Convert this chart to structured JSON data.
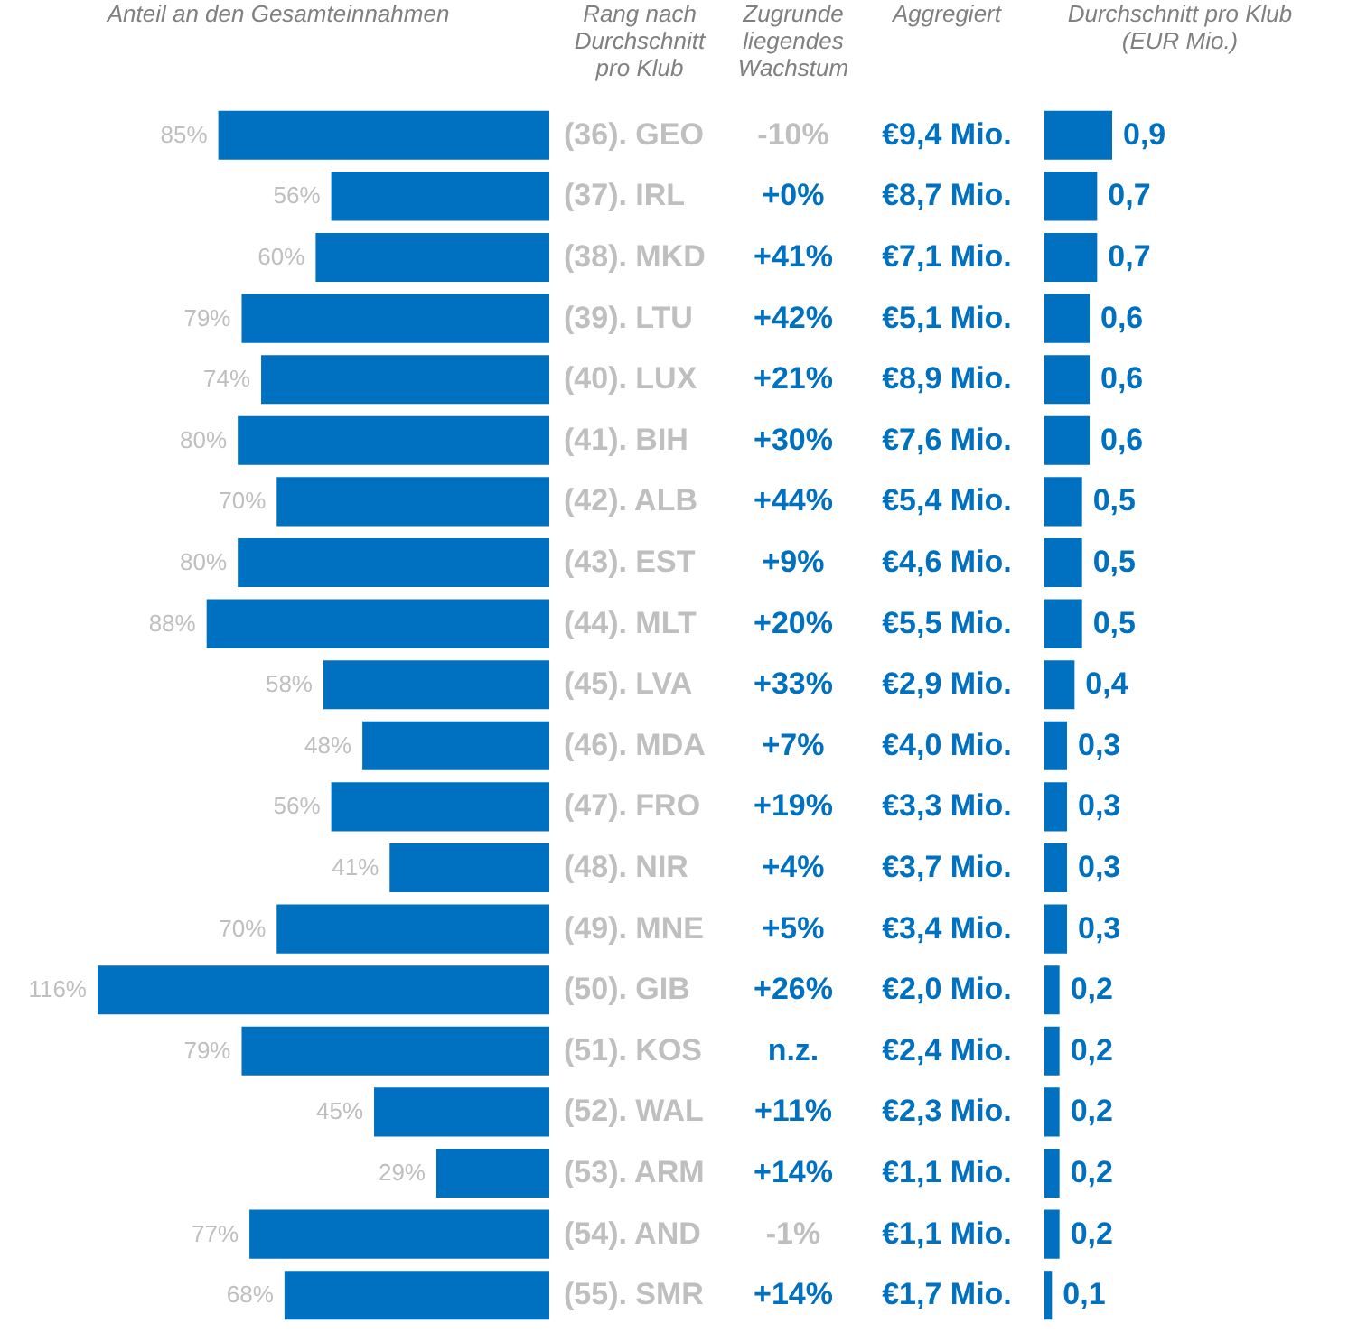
{
  "chart_data": [
    {
      "type": "bar",
      "orientation": "horizontal",
      "title": "Anteil an den Gesamteinnahmen",
      "ylabel": "Rang nach\nDurchschnitt\npro Klub",
      "color": "#0070c0",
      "categories": [
        "(36). GEO",
        "(37). IRL",
        "(38). MKD",
        "(39). LTU",
        "(40). LUX",
        "(41). BIH",
        "(42). ALB",
        "(43). EST",
        "(44). MLT",
        "(45). LVA",
        "(46). MDA",
        "(47). FRO",
        "(48). NIR",
        "(49). MNE",
        "(50). GIB",
        "(51). KOS",
        "(52). WAL",
        "(53). ARM",
        "(54). AND",
        "(55). SMR"
      ],
      "values": [
        85,
        56,
        60,
        79,
        74,
        80,
        70,
        80,
        88,
        58,
        48,
        56,
        41,
        70,
        116,
        79,
        45,
        29,
        77,
        68
      ],
      "value_labels": [
        "85%",
        "56%",
        "60%",
        "79%",
        "74%",
        "80%",
        "70%",
        "80%",
        "88%",
        "58%",
        "48%",
        "56%",
        "41%",
        "70%",
        "116%",
        "79%",
        "45%",
        "29%",
        "77%",
        "68%"
      ]
    },
    {
      "type": "other",
      "title": "Zugrunde\nliegendes\nWachstum",
      "annotations": [
        "-10%",
        "+0%",
        "+41%",
        "+42%",
        "+21%",
        "+30%",
        "+44%",
        "+9%",
        "+20%",
        "+33%",
        "+7%",
        "+19%",
        "+4%",
        "+5%",
        "+26%",
        "n.z.",
        "+11%",
        "+14%",
        "-1%",
        "+14%"
      ],
      "colors": [
        "#bfbfbf",
        "#0070c0",
        "#0070c0",
        "#0070c0",
        "#0070c0",
        "#0070c0",
        "#0070c0",
        "#0070c0",
        "#0070c0",
        "#0070c0",
        "#0070c0",
        "#0070c0",
        "#0070c0",
        "#0070c0",
        "#0070c0",
        "#0070c0",
        "#0070c0",
        "#0070c0",
        "#bfbfbf",
        "#0070c0"
      ]
    },
    {
      "type": "other",
      "title": "Aggregiert",
      "color": "#0070c0",
      "annotations": [
        "€9,4 Mio.",
        "€8,7 Mio.",
        "€7,1 Mio.",
        "€5,1 Mio.",
        "€8,9 Mio.",
        "€7,6 Mio.",
        "€5,4 Mio.",
        "€4,6 Mio.",
        "€5,5 Mio.",
        "€2,9 Mio.",
        "€4,0 Mio.",
        "€3,3 Mio.",
        "€3,7 Mio.",
        "€3,4 Mio.",
        "€2,0 Mio.",
        "€2,4 Mio.",
        "€2,3 Mio.",
        "€1,1 Mio.",
        "€1,1 Mio.",
        "€1,7 Mio."
      ]
    },
    {
      "type": "bar",
      "orientation": "horizontal",
      "title": "Durchschnitt pro Klub\n(EUR Mio.)",
      "color": "#0070c0",
      "categories": [
        null,
        null,
        null,
        null,
        null,
        null,
        null,
        null,
        null,
        null,
        null,
        null,
        null,
        null,
        null,
        null,
        null,
        null,
        null,
        null
      ],
      "values": [
        0.9,
        0.7,
        0.7,
        0.6,
        0.6,
        0.6,
        0.5,
        0.5,
        0.5,
        0.4,
        0.3,
        0.3,
        0.3,
        0.3,
        0.2,
        0.2,
        0.2,
        0.2,
        0.2,
        0.1
      ],
      "value_labels": [
        "0,9",
        "0,7",
        "0,7",
        "0,6",
        "0,6",
        "0,6",
        "0,5",
        "0,5",
        "0,5",
        "0,4",
        "0,3",
        "0,3",
        "0,3",
        "0,3",
        "0,2",
        "0,2",
        "0,2",
        "0,2",
        "0,2",
        "0,1"
      ]
    }
  ]
}
